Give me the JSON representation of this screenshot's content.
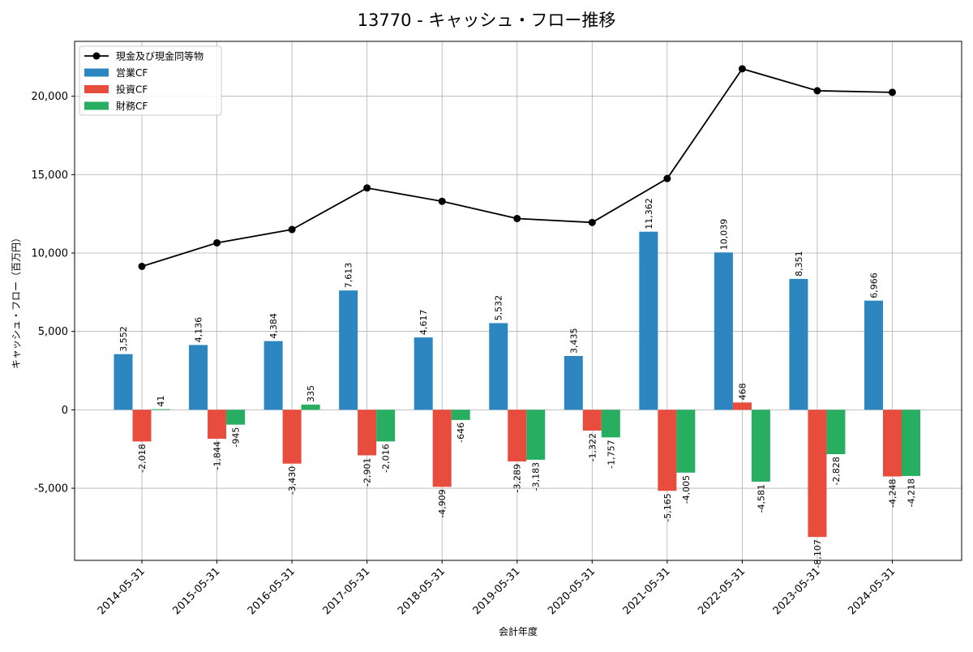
{
  "chart_data": {
    "type": "bar",
    "title": "13770 - キャッシュ・フロー推移",
    "xlabel": "会計年度",
    "ylabel": "キャッシュ・フロー（百万円）",
    "categories": [
      "2014-05-31",
      "2015-05-31",
      "2016-05-31",
      "2017-05-31",
      "2018-05-31",
      "2019-05-31",
      "2020-05-31",
      "2021-05-31",
      "2022-05-31",
      "2023-05-31",
      "2024-05-31"
    ],
    "ylim": [
      -9600,
      23500
    ],
    "yticks": [
      -5000,
      0,
      5000,
      10000,
      15000,
      20000
    ],
    "ytick_labels": [
      "-5,000",
      "0",
      "5,000",
      "10,000",
      "15,000",
      "20,000"
    ],
    "grid": true,
    "legend_position": "top-left",
    "series": [
      {
        "name": "営業CF",
        "kind": "bar",
        "color": "#2e86c1",
        "values": [
          3552,
          4136,
          4384,
          7613,
          4617,
          5532,
          3435,
          11362,
          10039,
          8351,
          6966
        ],
        "labels": [
          "3,552",
          "4,136",
          "4,384",
          "7,613",
          "4,617",
          "5,532",
          "3,435",
          "11,362",
          "10,039",
          "8,351",
          "6,966"
        ]
      },
      {
        "name": "投資CF",
        "kind": "bar",
        "color": "#e74c3c",
        "values": [
          -2018,
          -1844,
          -3430,
          -2901,
          -4909,
          -3289,
          -1322,
          -5165,
          468,
          -8107,
          -4248
        ],
        "labels": [
          "-2,018",
          "-1,844",
          "-3,430",
          "-2,901",
          "-4,909",
          "-3,289",
          "-1,322",
          "-5,165",
          "468",
          "-8,107",
          "-4,248"
        ]
      },
      {
        "name": "財務CF",
        "kind": "bar",
        "color": "#27ae60",
        "values": [
          41,
          -945,
          335,
          -2016,
          -646,
          -3183,
          -1757,
          -4005,
          -4581,
          -2828,
          -4218
        ],
        "labels": [
          "41",
          "-945",
          "335",
          "-2,016",
          "-646",
          "-3,183",
          "-1,757",
          "-4,005",
          "-4,581",
          "-2,828",
          "-4,218"
        ]
      },
      {
        "name": "現金及び現金同等物",
        "kind": "line",
        "color": "#000000",
        "values": [
          9150,
          10650,
          11500,
          14150,
          13300,
          12200,
          11950,
          14750,
          21750,
          20350,
          20250
        ]
      }
    ]
  }
}
